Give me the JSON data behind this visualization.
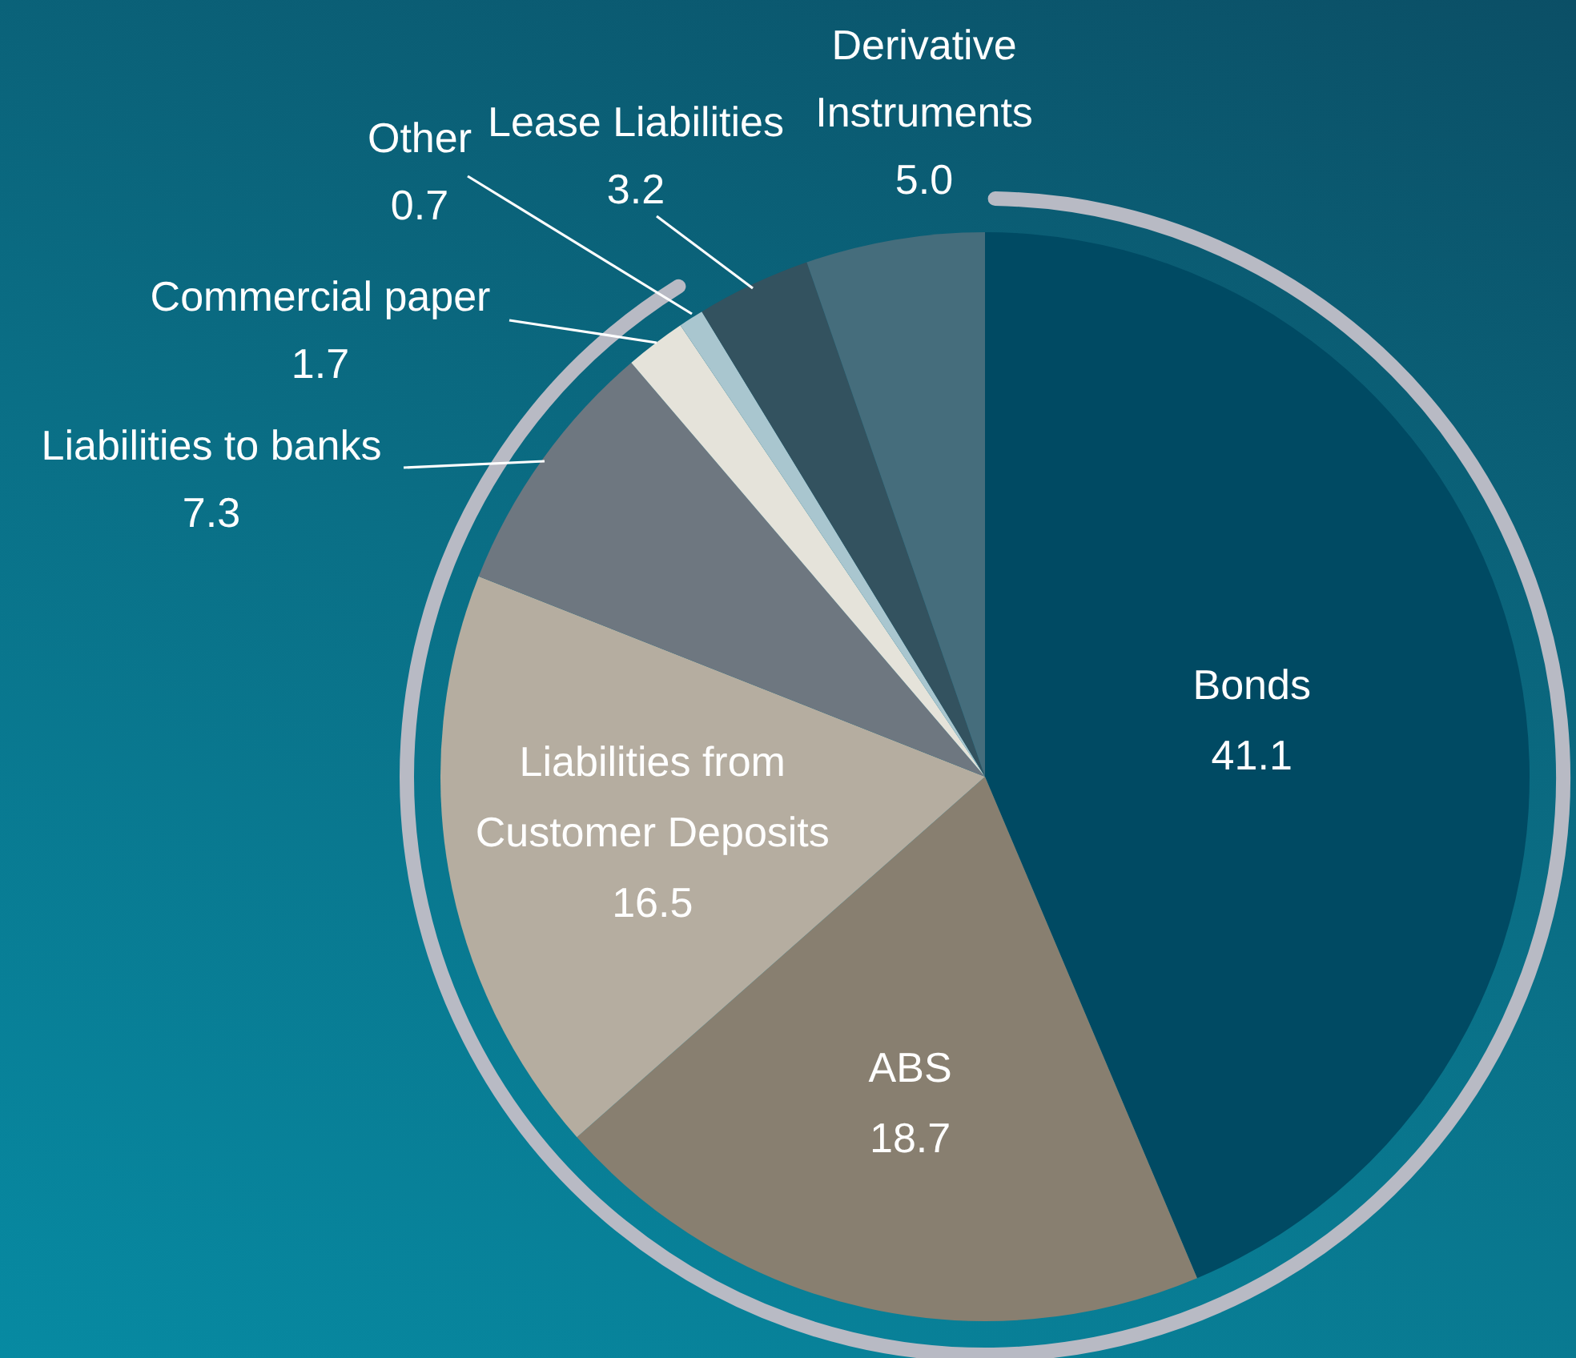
{
  "chart_data": {
    "type": "pie",
    "categories": [
      "Bonds",
      "ABS",
      "Liabilities from Customer Deposits",
      "Liabilities to banks",
      "Commercial paper",
      "Other",
      "Lease Liabilities",
      "Derivative Instruments"
    ],
    "values": [
      41.1,
      18.7,
      16.5,
      7.3,
      1.7,
      0.7,
      3.2,
      5.0
    ],
    "colors": [
      "#004a63",
      "#887f70",
      "#b5ada0",
      "#6e7780",
      "#e5e3da",
      "#a9c6cf",
      "#33525f",
      "#456d7c"
    ],
    "value_labels": [
      "41.1",
      "18.7",
      "16.5",
      "7.3",
      "1.7",
      "0.7",
      "3.2",
      "5.0"
    ],
    "legend": false
  }
}
